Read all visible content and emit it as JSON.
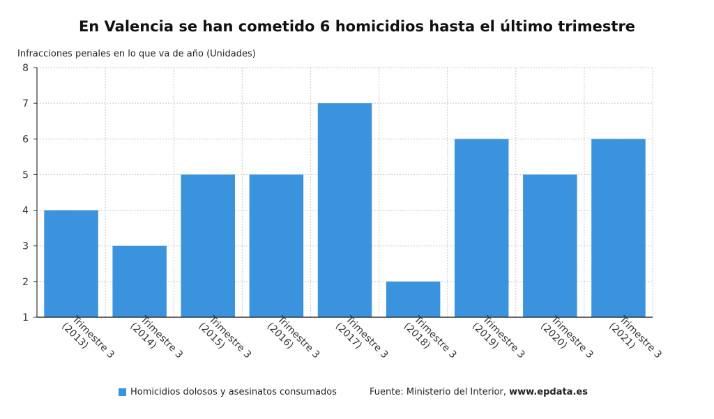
{
  "chart_data": {
    "type": "bar",
    "title": "En Valencia se han cometido 6 homicidios hasta el último trimestre",
    "ylabel": "Infracciones penales en lo que va de año (Unidades)",
    "xlabel": "",
    "categories": [
      [
        "Trimestre 3",
        "(2013)"
      ],
      [
        "Trimestre 3",
        "(2014)"
      ],
      [
        "Trimestre 3",
        "(2015)"
      ],
      [
        "Trimestre 3",
        "(2016)"
      ],
      [
        "Trimestre 3",
        "(2017)"
      ],
      [
        "Trimestre 3",
        "(2018)"
      ],
      [
        "Trimestre 3",
        "(2019)"
      ],
      [
        "Trimestre 3",
        "(2020)"
      ],
      [
        "Trimestre 3",
        "(2021)"
      ]
    ],
    "series": [
      {
        "name": "Homicidios dolosos y asesinatos consumados",
        "values": [
          4,
          3,
          5,
          5,
          7,
          2,
          6,
          5,
          6
        ],
        "color": "#3a93dc"
      }
    ],
    "ylim": [
      1,
      8
    ],
    "yticks": [
      1,
      2,
      3,
      4,
      5,
      6,
      7,
      8
    ],
    "grid": true,
    "legend_position": "bottom-left"
  },
  "source": {
    "label": "Fuente: Ministerio del Interior, ",
    "site": "www.epdata.es"
  }
}
